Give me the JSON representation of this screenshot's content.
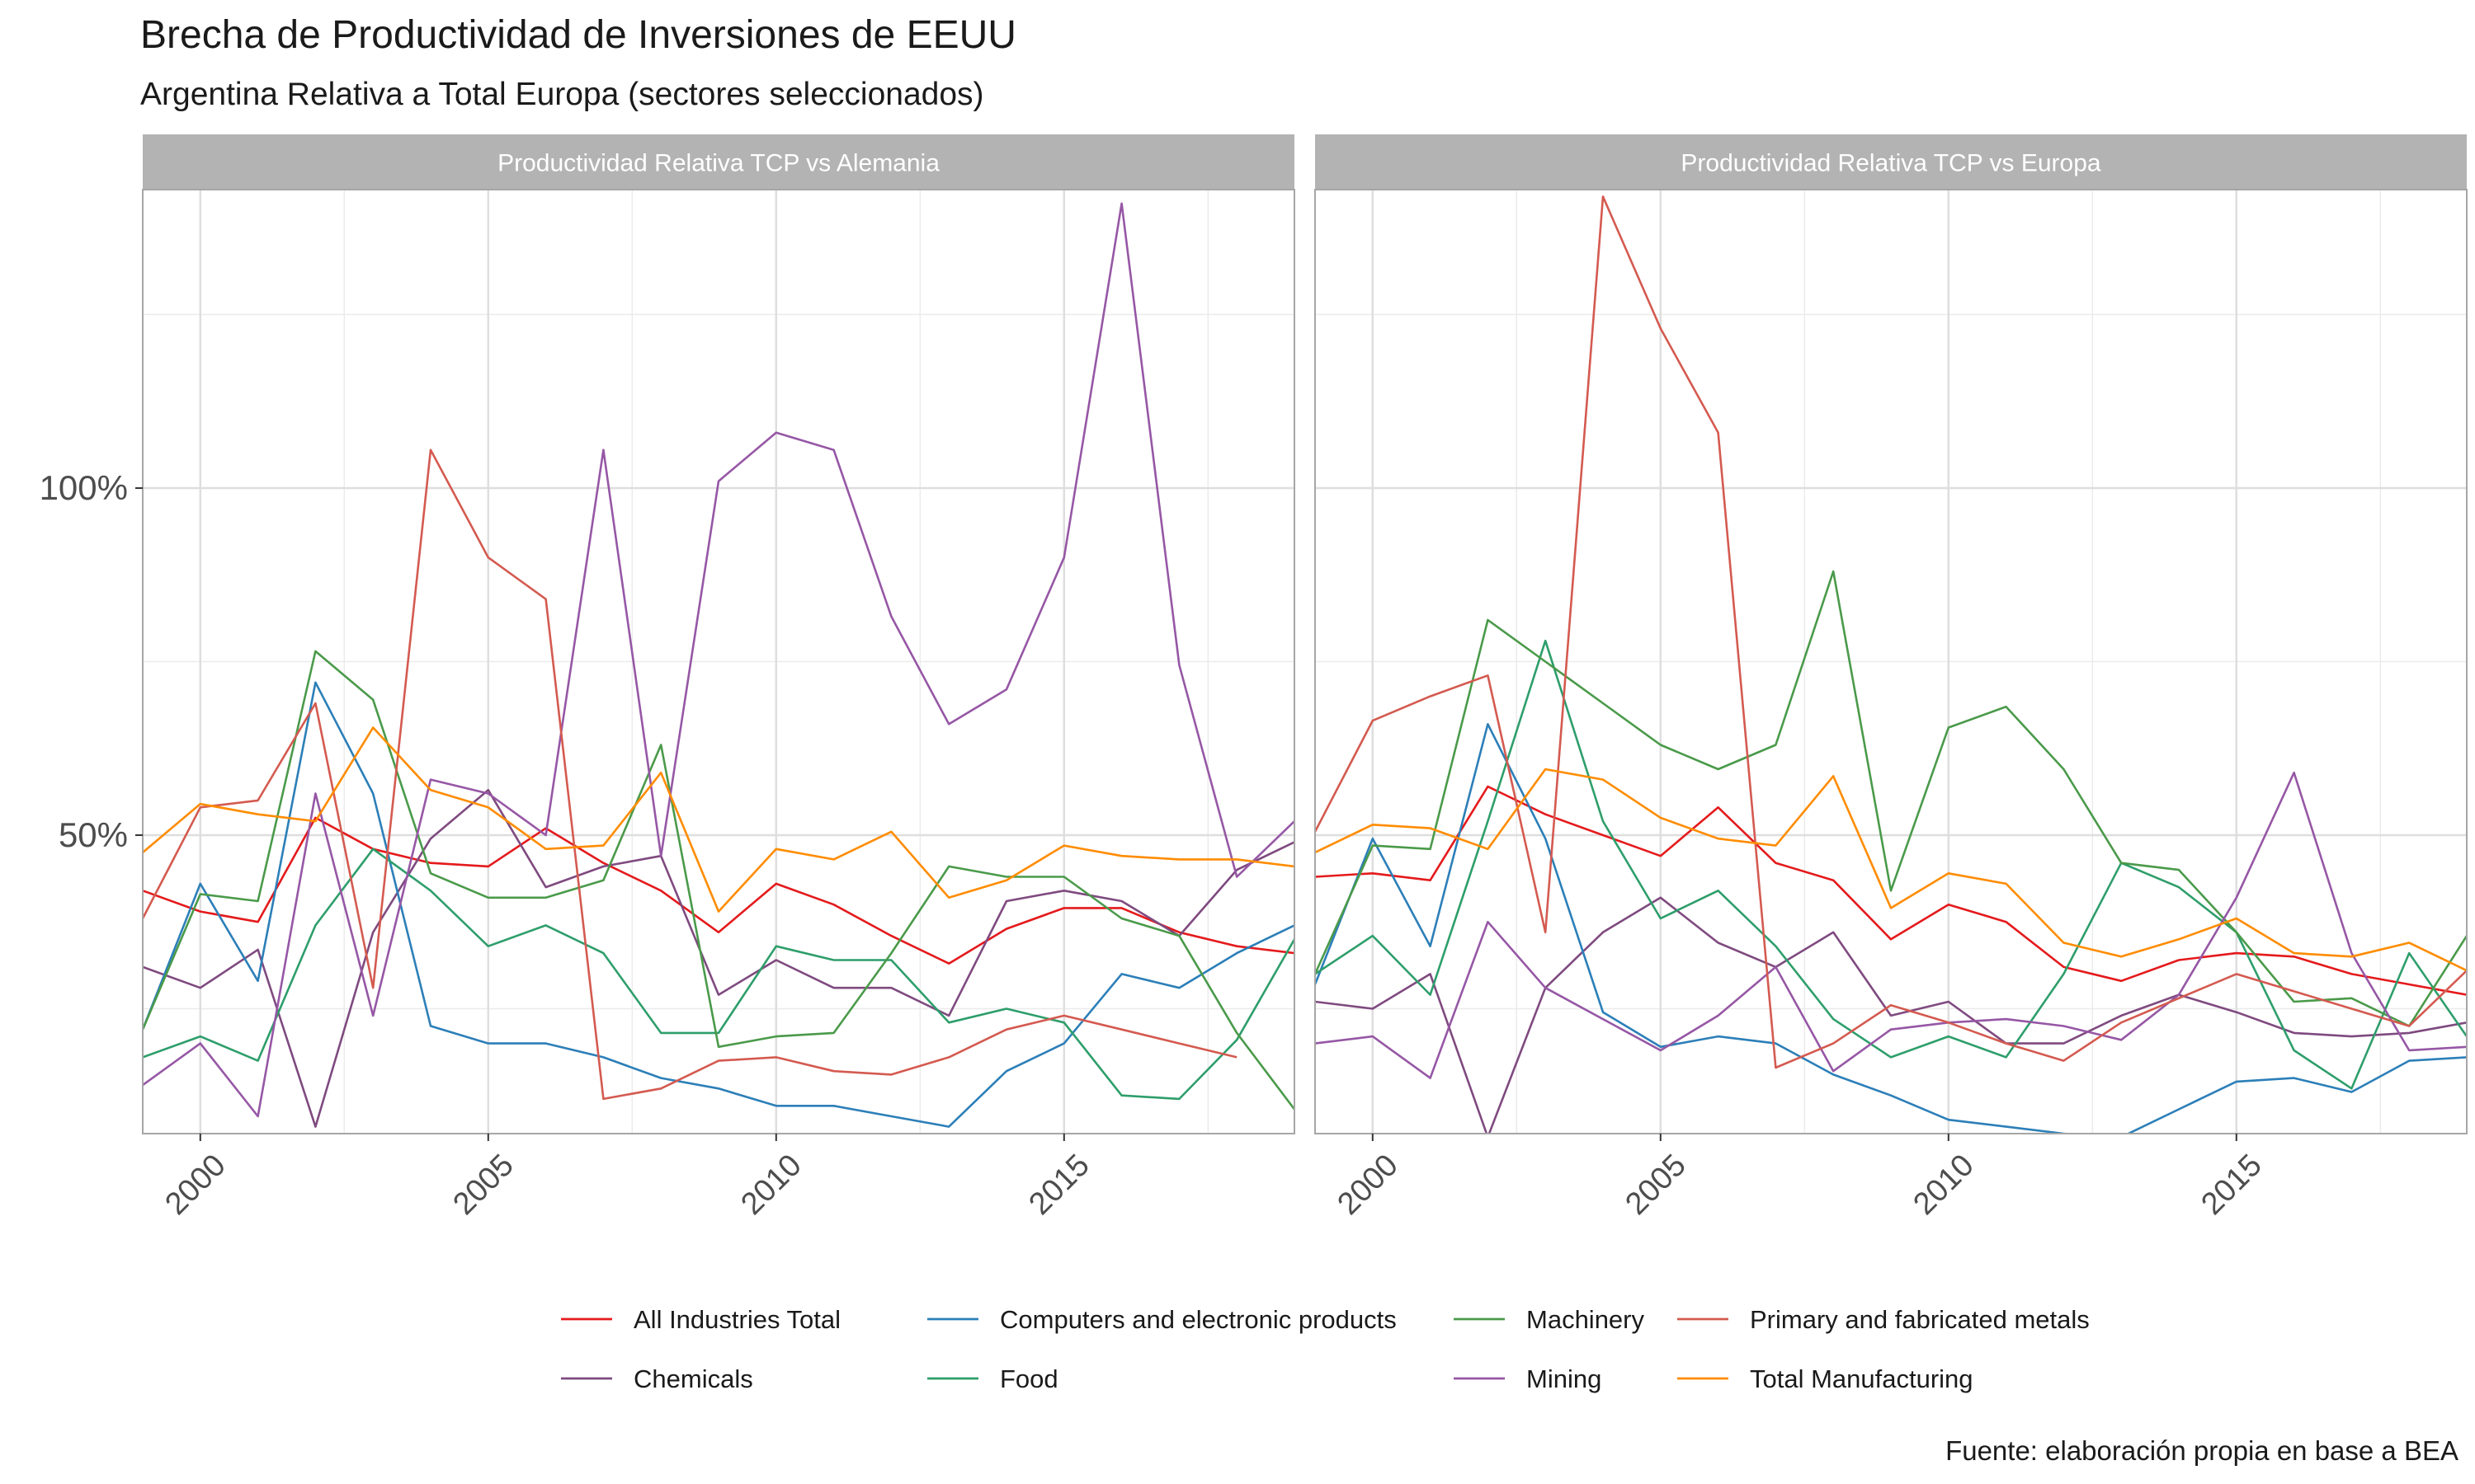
{
  "title": "Brecha de Productividad de Inversiones de EEUU",
  "subtitle": "Argentina Relativa a Total Europa (sectores seleccionados)",
  "caption": "Fuente: elaboración propia en base a BEA",
  "chart_data": {
    "type": "line",
    "x_range": [
      1999,
      2019
    ],
    "y_range": [
      0.07,
      1.43
    ],
    "x_ticks": [
      2000,
      2005,
      2010,
      2015
    ],
    "y_ticks": [
      0.5,
      1.0
    ],
    "y_tick_labels": [
      "50%",
      "100%"
    ],
    "grid": true,
    "legend_position": "bottom",
    "x": [
      1999,
      2000,
      2001,
      2002,
      2003,
      2004,
      2005,
      2006,
      2007,
      2008,
      2009,
      2010,
      2011,
      2012,
      2013,
      2014,
      2015,
      2016,
      2017,
      2018,
      2019
    ],
    "series_styles": [
      {
        "name": "All Industries Total",
        "color": "#e41a1c"
      },
      {
        "name": "Chemicals",
        "color": "#7f4a7f"
      },
      {
        "name": "Computers and electronic products",
        "color": "#2c7fb8"
      },
      {
        "name": "Food",
        "color": "#2e9e6b"
      },
      {
        "name": "Machinery",
        "color": "#4a9a4a"
      },
      {
        "name": "Mining",
        "color": "#9657a5"
      },
      {
        "name": "Primary and fabricated metals",
        "color": "#d45a50"
      },
      {
        "name": "Total Manufacturing",
        "color": "#ff8c00"
      }
    ],
    "panels": [
      {
        "label": "Productividad Relativa TCP vs Alemania",
        "series": [
          {
            "name": "All Industries Total",
            "values": [
              0.42,
              0.39,
              0.375,
              0.525,
              0.48,
              0.46,
              0.455,
              0.51,
              0.46,
              0.42,
              0.36,
              0.43,
              0.4,
              0.355,
              0.315,
              0.365,
              0.395,
              0.395,
              0.36,
              0.34,
              0.33
            ]
          },
          {
            "name": "Chemicals",
            "values": [
              0.31,
              0.28,
              0.335,
              0.08,
              0.36,
              0.495,
              0.565,
              0.425,
              0.455,
              0.47,
              0.27,
              0.32,
              0.28,
              0.28,
              0.24,
              0.405,
              0.42,
              0.405,
              0.355,
              0.45,
              0.49
            ]
          },
          {
            "name": "Computers and electronic products",
            "values": [
              0.22,
              0.43,
              0.29,
              0.72,
              0.56,
              0.225,
              0.2,
              0.2,
              0.18,
              0.15,
              0.135,
              0.11,
              0.11,
              0.095,
              0.08,
              0.16,
              0.2,
              0.3,
              0.28,
              0.33,
              0.37
            ]
          },
          {
            "name": "Food",
            "values": [
              0.18,
              0.21,
              0.175,
              0.37,
              0.48,
              0.42,
              0.34,
              0.37,
              0.33,
              0.215,
              0.215,
              0.34,
              0.32,
              0.32,
              0.23,
              0.25,
              0.23,
              0.125,
              0.12,
              0.205,
              0.35
            ]
          },
          {
            "name": "Machinery",
            "values": [
              0.22,
              0.415,
              0.405,
              0.765,
              0.695,
              0.445,
              0.41,
              0.41,
              0.435,
              0.63,
              0.195,
              0.21,
              0.215,
              0.33,
              0.455,
              0.44,
              0.44,
              0.38,
              0.355,
              0.215,
              0.105
            ]
          },
          {
            "name": "Mining",
            "values": [
              0.14,
              0.2,
              0.095,
              0.56,
              0.24,
              0.58,
              0.56,
              0.5,
              1.055,
              0.47,
              1.01,
              1.08,
              1.055,
              0.815,
              0.66,
              0.71,
              0.9,
              1.41,
              0.745,
              0.44,
              0.52
            ]
          },
          {
            "name": "Primary and fabricated metals",
            "values": [
              0.38,
              0.54,
              0.55,
              0.69,
              0.28,
              1.055,
              0.9,
              0.84,
              0.12,
              0.135,
              0.175,
              0.18,
              0.16,
              0.155,
              0.18,
              0.22,
              0.24,
              0.22,
              0.2,
              0.18,
              null
            ]
          },
          {
            "name": "Total Manufacturing",
            "values": [
              0.475,
              0.545,
              0.53,
              0.52,
              0.655,
              0.565,
              0.54,
              0.48,
              0.485,
              0.59,
              0.39,
              0.48,
              0.465,
              0.505,
              0.41,
              0.435,
              0.485,
              0.47,
              0.465,
              0.465,
              0.455
            ]
          }
        ]
      },
      {
        "label": "Productividad Relativa TCP vs Europa",
        "series": [
          {
            "name": "All Industries Total",
            "values": [
              0.44,
              0.445,
              0.435,
              0.57,
              0.53,
              0.5,
              0.47,
              0.54,
              0.46,
              0.435,
              0.35,
              0.4,
              0.375,
              0.31,
              0.29,
              0.32,
              0.33,
              0.325,
              0.3,
              0.285,
              0.27
            ]
          },
          {
            "name": "Chemicals",
            "values": [
              0.26,
              0.25,
              0.3,
              0.065,
              0.28,
              0.36,
              0.41,
              0.345,
              0.31,
              0.36,
              0.24,
              0.26,
              0.2,
              0.2,
              0.24,
              0.27,
              0.245,
              0.215,
              0.21,
              0.215,
              0.23
            ]
          },
          {
            "name": "Computers and electronic products",
            "values": [
              0.285,
              0.495,
              0.34,
              0.66,
              0.495,
              0.245,
              0.195,
              0.21,
              0.2,
              0.155,
              0.125,
              0.09,
              0.08,
              0.07,
              0.065,
              0.105,
              0.145,
              0.15,
              0.13,
              0.175,
              0.18
            ]
          },
          {
            "name": "Food",
            "values": [
              0.3,
              0.355,
              0.27,
              0.52,
              0.78,
              0.52,
              0.38,
              0.42,
              0.34,
              0.235,
              0.18,
              0.21,
              0.18,
              0.3,
              0.46,
              0.425,
              0.36,
              0.19,
              0.135,
              0.33,
              0.21
            ]
          },
          {
            "name": "Machinery",
            "values": [
              0.3,
              0.485,
              0.48,
              0.81,
              0.75,
              0.69,
              0.63,
              0.595,
              0.63,
              0.88,
              0.42,
              0.655,
              0.685,
              0.595,
              0.46,
              0.45,
              0.36,
              0.26,
              0.265,
              0.225,
              0.355
            ]
          },
          {
            "name": "Mining",
            "values": [
              0.2,
              0.21,
              0.15,
              0.375,
              0.28,
              0.235,
              0.19,
              0.24,
              0.31,
              0.16,
              0.22,
              0.23,
              0.235,
              0.225,
              0.205,
              0.27,
              0.41,
              0.59,
              0.33,
              0.19,
              0.195
            ]
          },
          {
            "name": "Primary and fabricated metals",
            "values": [
              0.505,
              0.665,
              0.7,
              0.73,
              0.36,
              1.42,
              1.23,
              1.08,
              0.165,
              0.2,
              0.255,
              0.23,
              0.2,
              0.175,
              0.23,
              0.265,
              0.3,
              0.275,
              0.25,
              0.225,
              0.305
            ]
          },
          {
            "name": "Total Manufacturing",
            "values": [
              0.475,
              0.515,
              0.51,
              0.48,
              0.595,
              0.58,
              0.525,
              0.495,
              0.485,
              0.585,
              0.395,
              0.445,
              0.43,
              0.345,
              0.325,
              0.35,
              0.38,
              0.33,
              0.325,
              0.345,
              0.305
            ]
          }
        ]
      }
    ]
  }
}
